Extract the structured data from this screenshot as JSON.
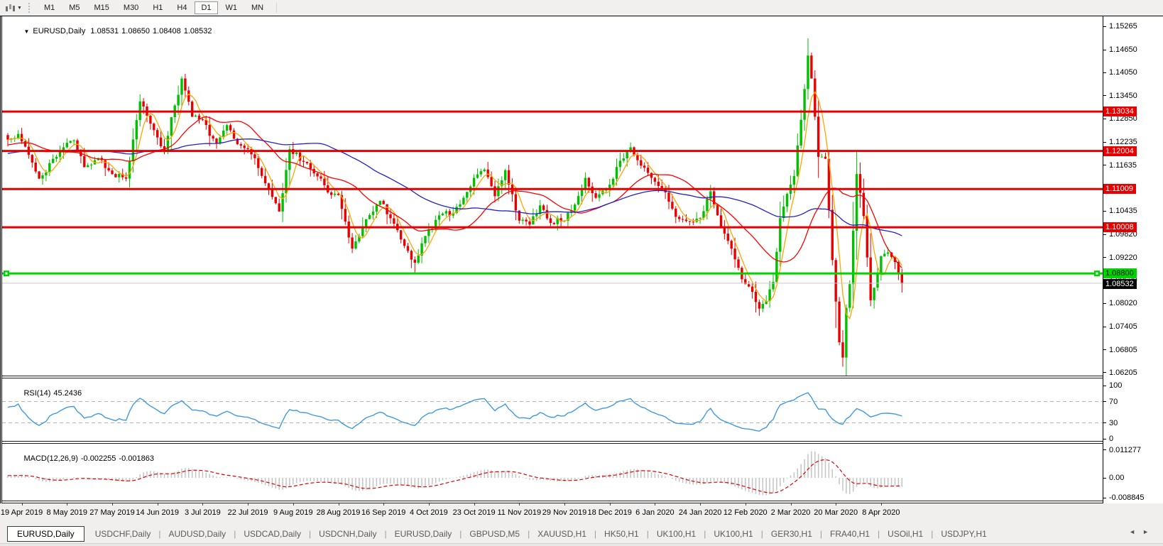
{
  "toolbar": {
    "dropdown_caret": "▼",
    "timeframes": [
      "M1",
      "M5",
      "M15",
      "M30",
      "H1",
      "H4",
      "D1",
      "W1",
      "MN"
    ],
    "active_timeframe": "D1"
  },
  "chart_header": {
    "collapse_caret": "▼",
    "symbol": "EURUSD,Daily",
    "open": "1.08531",
    "high": "1.08650",
    "low": "1.08408",
    "close": "1.08532"
  },
  "price_axis_ticks": [
    {
      "label": "1.15265",
      "price": 1.15265
    },
    {
      "label": "1.14650",
      "price": 1.1465
    },
    {
      "label": "1.14050",
      "price": 1.1405
    },
    {
      "label": "1.13450",
      "price": 1.1345
    },
    {
      "label": "1.12850",
      "price": 1.1285
    },
    {
      "label": "1.12235",
      "price": 1.12235
    },
    {
      "label": "1.11635",
      "price": 1.11635
    },
    {
      "label": "1.10435",
      "price": 1.10435
    },
    {
      "label": "1.09820",
      "price": 1.0982
    },
    {
      "label": "1.09220",
      "price": 1.0922
    },
    {
      "label": "1.08620",
      "price": 1.0862
    },
    {
      "label": "1.08020",
      "price": 1.0802
    },
    {
      "label": "1.07405",
      "price": 1.07405
    },
    {
      "label": "1.06805",
      "price": 1.06805
    },
    {
      "label": "1.06205",
      "price": 1.06205
    }
  ],
  "levels": {
    "resistance_lines": [
      {
        "price": 1.13034,
        "label": "1.13034"
      },
      {
        "price": 1.12004,
        "label": "1.12004"
      },
      {
        "price": 1.11009,
        "label": "1.11009"
      },
      {
        "price": 1.10008,
        "label": "1.10008"
      }
    ],
    "support_line": {
      "price": 1.088,
      "label": "1.08800"
    },
    "silver_line": {
      "price": 1.08545
    },
    "bid": {
      "price": 1.08532,
      "label": "1.08532"
    }
  },
  "date_axis": [
    {
      "label": "19 Apr 2019",
      "idx": 4
    },
    {
      "label": "8 May 2019",
      "idx": 17
    },
    {
      "label": "27 May 2019",
      "idx": 30
    },
    {
      "label": "14 Jun 2019",
      "idx": 43
    },
    {
      "label": "3 Jul 2019",
      "idx": 56
    },
    {
      "label": "22 Jul 2019",
      "idx": 69
    },
    {
      "label": "9 Aug 2019",
      "idx": 82
    },
    {
      "label": "28 Aug 2019",
      "idx": 95
    },
    {
      "label": "16 Sep 2019",
      "idx": 108
    },
    {
      "label": "4 Oct 2019",
      "idx": 121
    },
    {
      "label": "23 Oct 2019",
      "idx": 134
    },
    {
      "label": "11 Nov 2019",
      "idx": 147
    },
    {
      "label": "29 Nov 2019",
      "idx": 160
    },
    {
      "label": "18 Dec 2019",
      "idx": 173
    },
    {
      "label": "6 Jan 2020",
      "idx": 186
    },
    {
      "label": "24 Jan 2020",
      "idx": 199
    },
    {
      "label": "12 Feb 2020",
      "idx": 212
    },
    {
      "label": "2 Mar 2020",
      "idx": 225
    },
    {
      "label": "20 Mar 2020",
      "idx": 238
    },
    {
      "label": "8 Apr 2020",
      "idx": 251
    }
  ],
  "rsi_panel": {
    "name": "RSI(14)",
    "value": "45.2436",
    "axis": [
      {
        "label": "100",
        "v": 100
      },
      {
        "label": "70",
        "v": 70
      },
      {
        "label": "30",
        "v": 30
      },
      {
        "label": "0",
        "v": 0
      }
    ],
    "dashed_levels": [
      70,
      30
    ]
  },
  "macd_panel": {
    "name": "MACD(12,26,9)",
    "macd_value": "-0.002255",
    "signal_value": "-0.001863",
    "axis": [
      {
        "label": "0.011277",
        "v": 0.011277
      },
      {
        "label": "0.00",
        "v": 0
      },
      {
        "label": "-0.008845",
        "v": -0.008845
      }
    ]
  },
  "tabs": {
    "items": [
      "EURUSD,Daily",
      "USDCHF,Daily",
      "AUDUSD,Daily",
      "USDCAD,Daily",
      "USDCNH,Daily",
      "EURUSD,Daily",
      "GBPUSD,M5",
      "XAUUSD,H1",
      "HK50,H1",
      "UK100,H1",
      "UK100,H1",
      "GER30,H1",
      "FRA40,H1",
      "USOil,H1",
      "USDJPY,H1"
    ],
    "active_index": 0,
    "scroll_left_icon": "◄",
    "scroll_right_icon": "►"
  },
  "colors": {
    "up_candle": "#00c000",
    "down_candle": "#ea0000",
    "ma_fast": "#ffa500",
    "ma_mid": "#ff0000",
    "ma_slow": "#2121c8",
    "rsi_line": "#3e9ade",
    "rsi_dash": "#b4b4b4",
    "macd_hist": "#c4c4c4",
    "macd_signal": "#e00000",
    "level_red": "#e60000",
    "level_green": "#00d400",
    "level_green_box_text": "#000000",
    "silver_line": "#c8c8c8",
    "bid_box_bg": "#000000",
    "bid_box_text": "#ffffff",
    "red_box_text": "#ffffff"
  },
  "chart_data": {
    "type": "candlestick",
    "symbol": "EURUSD",
    "timeframe": "Daily",
    "n_candles": 258,
    "x_range_dates": [
      "19 Apr 2019",
      "8 Apr 2020"
    ],
    "price_range_visible": [
      1.06129,
      1.15525
    ],
    "close_waypoints": [
      [
        0,
        1.123
      ],
      [
        3,
        1.1245
      ],
      [
        6,
        1.119
      ],
      [
        9,
        1.1128
      ],
      [
        13,
        1.118
      ],
      [
        16,
        1.121
      ],
      [
        19,
        1.1228
      ],
      [
        22,
        1.1158
      ],
      [
        26,
        1.1182
      ],
      [
        30,
        1.114
      ],
      [
        34,
        1.1128
      ],
      [
        38,
        1.133
      ],
      [
        41,
        1.1272
      ],
      [
        45,
        1.12
      ],
      [
        50,
        1.139
      ],
      [
        53,
        1.129
      ],
      [
        56,
        1.1282
      ],
      [
        60,
        1.122
      ],
      [
        63,
        1.1268
      ],
      [
        66,
        1.1218
      ],
      [
        69,
        1.1205
      ],
      [
        73,
        1.1135
      ],
      [
        76,
        1.108
      ],
      [
        78,
        1.1042
      ],
      [
        81,
        1.1205
      ],
      [
        85,
        1.1172
      ],
      [
        88,
        1.1142
      ],
      [
        92,
        1.1092
      ],
      [
        95,
        1.1085
      ],
      [
        99,
        1.0945
      ],
      [
        103,
        1.1022
      ],
      [
        107,
        1.107
      ],
      [
        111,
        1.101
      ],
      [
        114,
        1.0952
      ],
      [
        117,
        1.0908
      ],
      [
        120,
        1.0978
      ],
      [
        124,
        1.1032
      ],
      [
        128,
        1.1038
      ],
      [
        131,
        1.1078
      ],
      [
        134,
        1.113
      ],
      [
        137,
        1.1152
      ],
      [
        140,
        1.1082
      ],
      [
        143,
        1.115
      ],
      [
        147,
        1.1018
      ],
      [
        150,
        1.1008
      ],
      [
        153,
        1.1058
      ],
      [
        156,
        1.1012
      ],
      [
        160,
        1.1018
      ],
      [
        163,
        1.106
      ],
      [
        166,
        1.113
      ],
      [
        169,
        1.1078
      ],
      [
        173,
        1.1112
      ],
      [
        176,
        1.1175
      ],
      [
        179,
        1.121
      ],
      [
        182,
        1.1162
      ],
      [
        186,
        1.112
      ],
      [
        189,
        1.1092
      ],
      [
        192,
        1.1028
      ],
      [
        196,
        1.1015
      ],
      [
        199,
        1.1025
      ],
      [
        202,
        1.1095
      ],
      [
        205,
        1.1002
      ],
      [
        208,
        1.0945
      ],
      [
        211,
        1.0865
      ],
      [
        214,
        1.0832
      ],
      [
        216,
        1.0788
      ],
      [
        218,
        1.0808
      ],
      [
        220,
        1.0858
      ],
      [
        222,
        1.1025
      ],
      [
        224,
        1.1088
      ],
      [
        226,
        1.1135
      ],
      [
        228,
        1.1282
      ],
      [
        230,
        1.145
      ],
      [
        231,
        1.139
      ],
      [
        233,
        1.1185
      ],
      [
        235,
        1.118
      ],
      [
        237,
        1.0915
      ],
      [
        239,
        1.07
      ],
      [
        240,
        1.066
      ],
      [
        241,
        1.079
      ],
      [
        242,
        1.0852
      ],
      [
        244,
        1.114
      ],
      [
        246,
        1.103
      ],
      [
        248,
        1.081
      ],
      [
        250,
        1.088
      ],
      [
        251,
        1.0925
      ],
      [
        253,
        1.0935
      ],
      [
        255,
        1.091
      ],
      [
        256,
        1.088
      ],
      [
        257,
        1.0853
      ]
    ],
    "wick_overrides": {
      "117": {
        "low": 1.0879
      },
      "230": {
        "high": 1.1495
      },
      "240": {
        "low": 1.0636
      }
    },
    "noise": 0.0013,
    "wick_base": 0.0013,
    "seed": 11,
    "warmup_start": 1.115,
    "moving_averages": [
      {
        "period": 5,
        "color_key": "ma_fast"
      },
      {
        "period": 21,
        "color_key": "ma_mid"
      },
      {
        "period": 55,
        "color_key": "ma_slow"
      }
    ],
    "rsi_period": 14,
    "macd": {
      "fast": 12,
      "slow": 26,
      "signal": 9
    }
  }
}
